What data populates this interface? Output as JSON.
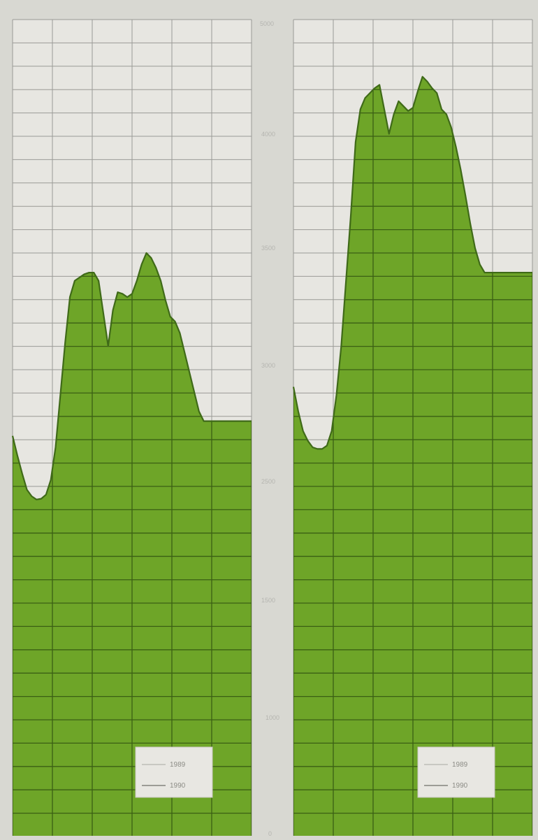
{
  "chart_data": [
    {
      "type": "area",
      "x": [
        0,
        2,
        4,
        6,
        8,
        10,
        12,
        14,
        16,
        18,
        20,
        22,
        24,
        26,
        28,
        30,
        32,
        34,
        36,
        38,
        40,
        42,
        44,
        46,
        48,
        50,
        52,
        54,
        56,
        58,
        60,
        62,
        64,
        66,
        68,
        70,
        72,
        74,
        76,
        78,
        80,
        82,
        84,
        86,
        88,
        90,
        92,
        94,
        96,
        98,
        100
      ],
      "series": [
        {
          "name": "1989",
          "values": [
            2450,
            2330,
            2220,
            2120,
            2080,
            2060,
            2065,
            2090,
            2180,
            2380,
            2700,
            3020,
            3300,
            3400,
            3420,
            3440,
            3450,
            3450,
            3400,
            3200,
            3000,
            3220,
            3330,
            3320,
            3300,
            3320,
            3400,
            3500,
            3570,
            3540,
            3480,
            3400,
            3280,
            3180,
            3150,
            3080,
            2960,
            2840,
            2720,
            2600,
            2540,
            2540,
            2540,
            2540,
            2540,
            2540,
            2540,
            2540,
            2540,
            2540,
            2540
          ],
          "color": "#6ea528"
        }
      ],
      "ylim": [
        0,
        5000
      ],
      "legend": {
        "position": "bottom-right",
        "entries": [
          "1989",
          "1990"
        ]
      },
      "grid": true
    },
    {
      "type": "area",
      "x": [
        0,
        2,
        4,
        6,
        8,
        10,
        12,
        14,
        16,
        18,
        20,
        22,
        24,
        26,
        28,
        30,
        32,
        34,
        36,
        38,
        40,
        42,
        44,
        46,
        48,
        50,
        52,
        54,
        56,
        58,
        60,
        62,
        64,
        66,
        68,
        70,
        72,
        74,
        76,
        78,
        80,
        82,
        84,
        86,
        88,
        90,
        92,
        94,
        96,
        98,
        100
      ],
      "series": [
        {
          "name": "1989",
          "values": [
            2750,
            2600,
            2480,
            2420,
            2380,
            2370,
            2370,
            2390,
            2480,
            2700,
            3000,
            3400,
            3800,
            4250,
            4450,
            4520,
            4550,
            4580,
            4600,
            4450,
            4300,
            4420,
            4500,
            4470,
            4440,
            4460,
            4560,
            4650,
            4620,
            4580,
            4550,
            4450,
            4420,
            4340,
            4220,
            4080,
            3920,
            3750,
            3600,
            3500,
            3450,
            3450,
            3450,
            3450,
            3450,
            3450,
            3450,
            3450,
            3450,
            3450,
            3450
          ],
          "color": "#6ea528"
        }
      ],
      "ylim": [
        0,
        5000
      ],
      "legend": {
        "position": "bottom-right",
        "entries": [
          "1989",
          "1990"
        ]
      },
      "grid": true
    }
  ],
  "axis": {
    "ticks": [
      "5000",
      "4000",
      "3500",
      "3000",
      "2500",
      "1500",
      "1000",
      "0"
    ]
  },
  "colors": {
    "fill": "#6ea528",
    "line": "#3f6a18",
    "grid_on_fill": "#3b5f14",
    "grid_on_paper": "#9a9a96",
    "paper": "#e7e6e1"
  }
}
